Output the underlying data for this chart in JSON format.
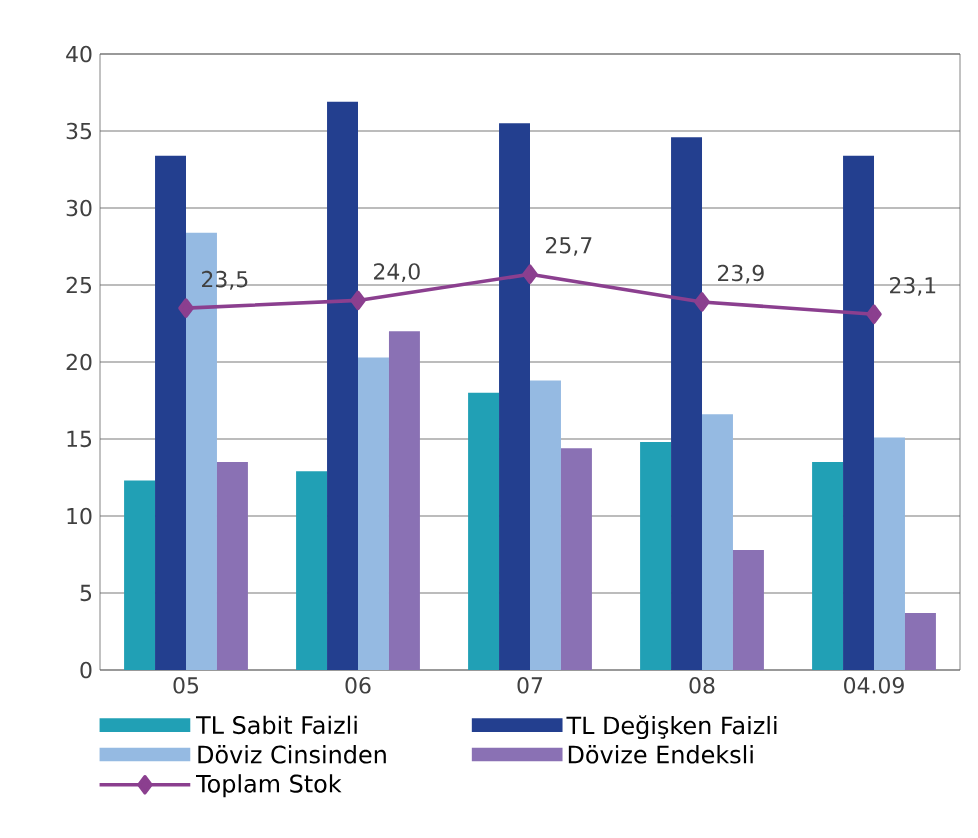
{
  "chart_data": {
    "type": "bar",
    "categories": [
      "05",
      "06",
      "07",
      "08",
      "04.09"
    ],
    "ylim": [
      0,
      40
    ],
    "yticks": [
      0,
      5,
      10,
      15,
      20,
      25,
      30,
      35,
      40
    ],
    "grid": "y",
    "legend": "bottom",
    "series": [
      {
        "name": "TL Sabit Faizli",
        "color": "#21a0b5",
        "values": [
          12.3,
          12.9,
          18.0,
          14.8,
          13.5
        ]
      },
      {
        "name": "TL Değişken Faizli",
        "color": "#233f8f",
        "values": [
          33.4,
          36.9,
          35.5,
          34.6,
          33.4
        ]
      },
      {
        "name": "Döviz Cinsinden",
        "color": "#95bae2",
        "values": [
          28.4,
          20.3,
          18.8,
          16.6,
          15.1
        ]
      },
      {
        "name": "Dövize Endeksli",
        "color": "#8a71b4",
        "values": [
          13.5,
          22.0,
          14.4,
          7.8,
          3.7
        ]
      },
      {
        "name": "Toplam Stok",
        "type": "line",
        "marker": "diamond",
        "color": "#8b3f8f",
        "values": [
          23.5,
          24.0,
          25.7,
          23.9,
          23.1
        ],
        "value_labels": [
          "23,5",
          "24,0",
          "25,7",
          "23,9",
          "23,1"
        ]
      }
    ]
  }
}
